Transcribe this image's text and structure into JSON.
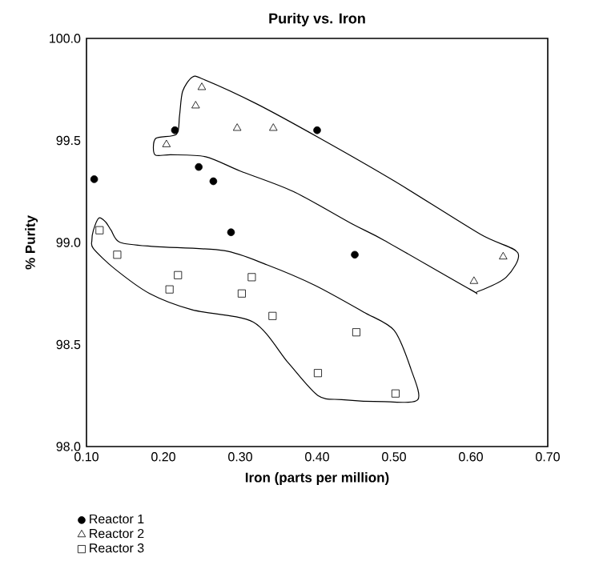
{
  "chart_data": {
    "type": "scatter",
    "title": "Purity vs. Iron",
    "xlabel": "Iron (parts per million)",
    "ylabel": "% Purity",
    "xlim": [
      0.1,
      0.7
    ],
    "ylim": [
      98.0,
      100.0
    ],
    "xticks": [
      {
        "value": 0.1,
        "label": "0.10"
      },
      {
        "value": 0.2,
        "label": "0.20"
      },
      {
        "value": 0.3,
        "label": "0.30"
      },
      {
        "value": 0.4,
        "label": "0.40"
      },
      {
        "value": 0.5,
        "label": "0.50"
      },
      {
        "value": 0.6,
        "label": "0.60"
      },
      {
        "value": 0.7,
        "label": "0.70"
      }
    ],
    "yticks": [
      {
        "value": 98.0,
        "label": "98.0"
      },
      {
        "value": 98.5,
        "label": "98.5"
      },
      {
        "value": 99.0,
        "label": "99.0"
      },
      {
        "value": 99.5,
        "label": "99.5"
      },
      {
        "value": 100.0,
        "label": "100.0"
      }
    ],
    "legend": "bottom left",
    "grid": false,
    "series": [
      {
        "name": "Reactor 1",
        "color": "#000000",
        "marker": "circle",
        "x": [
          0.11,
          0.215,
          0.246,
          0.265,
          0.4,
          0.288,
          0.449
        ],
        "values": [
          99.31,
          99.55,
          99.37,
          99.3,
          99.55,
          99.05,
          98.94
        ]
      },
      {
        "name": "Reactor 2",
        "color": "#000000",
        "marker": "triangle",
        "x": [
          0.25,
          0.242,
          0.296,
          0.343,
          0.204,
          0.642,
          0.604
        ],
        "values": [
          99.76,
          99.67,
          99.56,
          99.56,
          99.48,
          98.93,
          98.81
        ]
      },
      {
        "name": "Reactor 3",
        "color": "#000000",
        "marker": "square",
        "x": [
          0.117,
          0.14,
          0.219,
          0.208,
          0.315,
          0.302,
          0.342,
          0.451,
          0.401,
          0.502
        ],
        "values": [
          99.06,
          98.94,
          98.84,
          98.77,
          98.83,
          98.75,
          98.64,
          98.56,
          98.36,
          98.26
        ]
      }
    ]
  }
}
